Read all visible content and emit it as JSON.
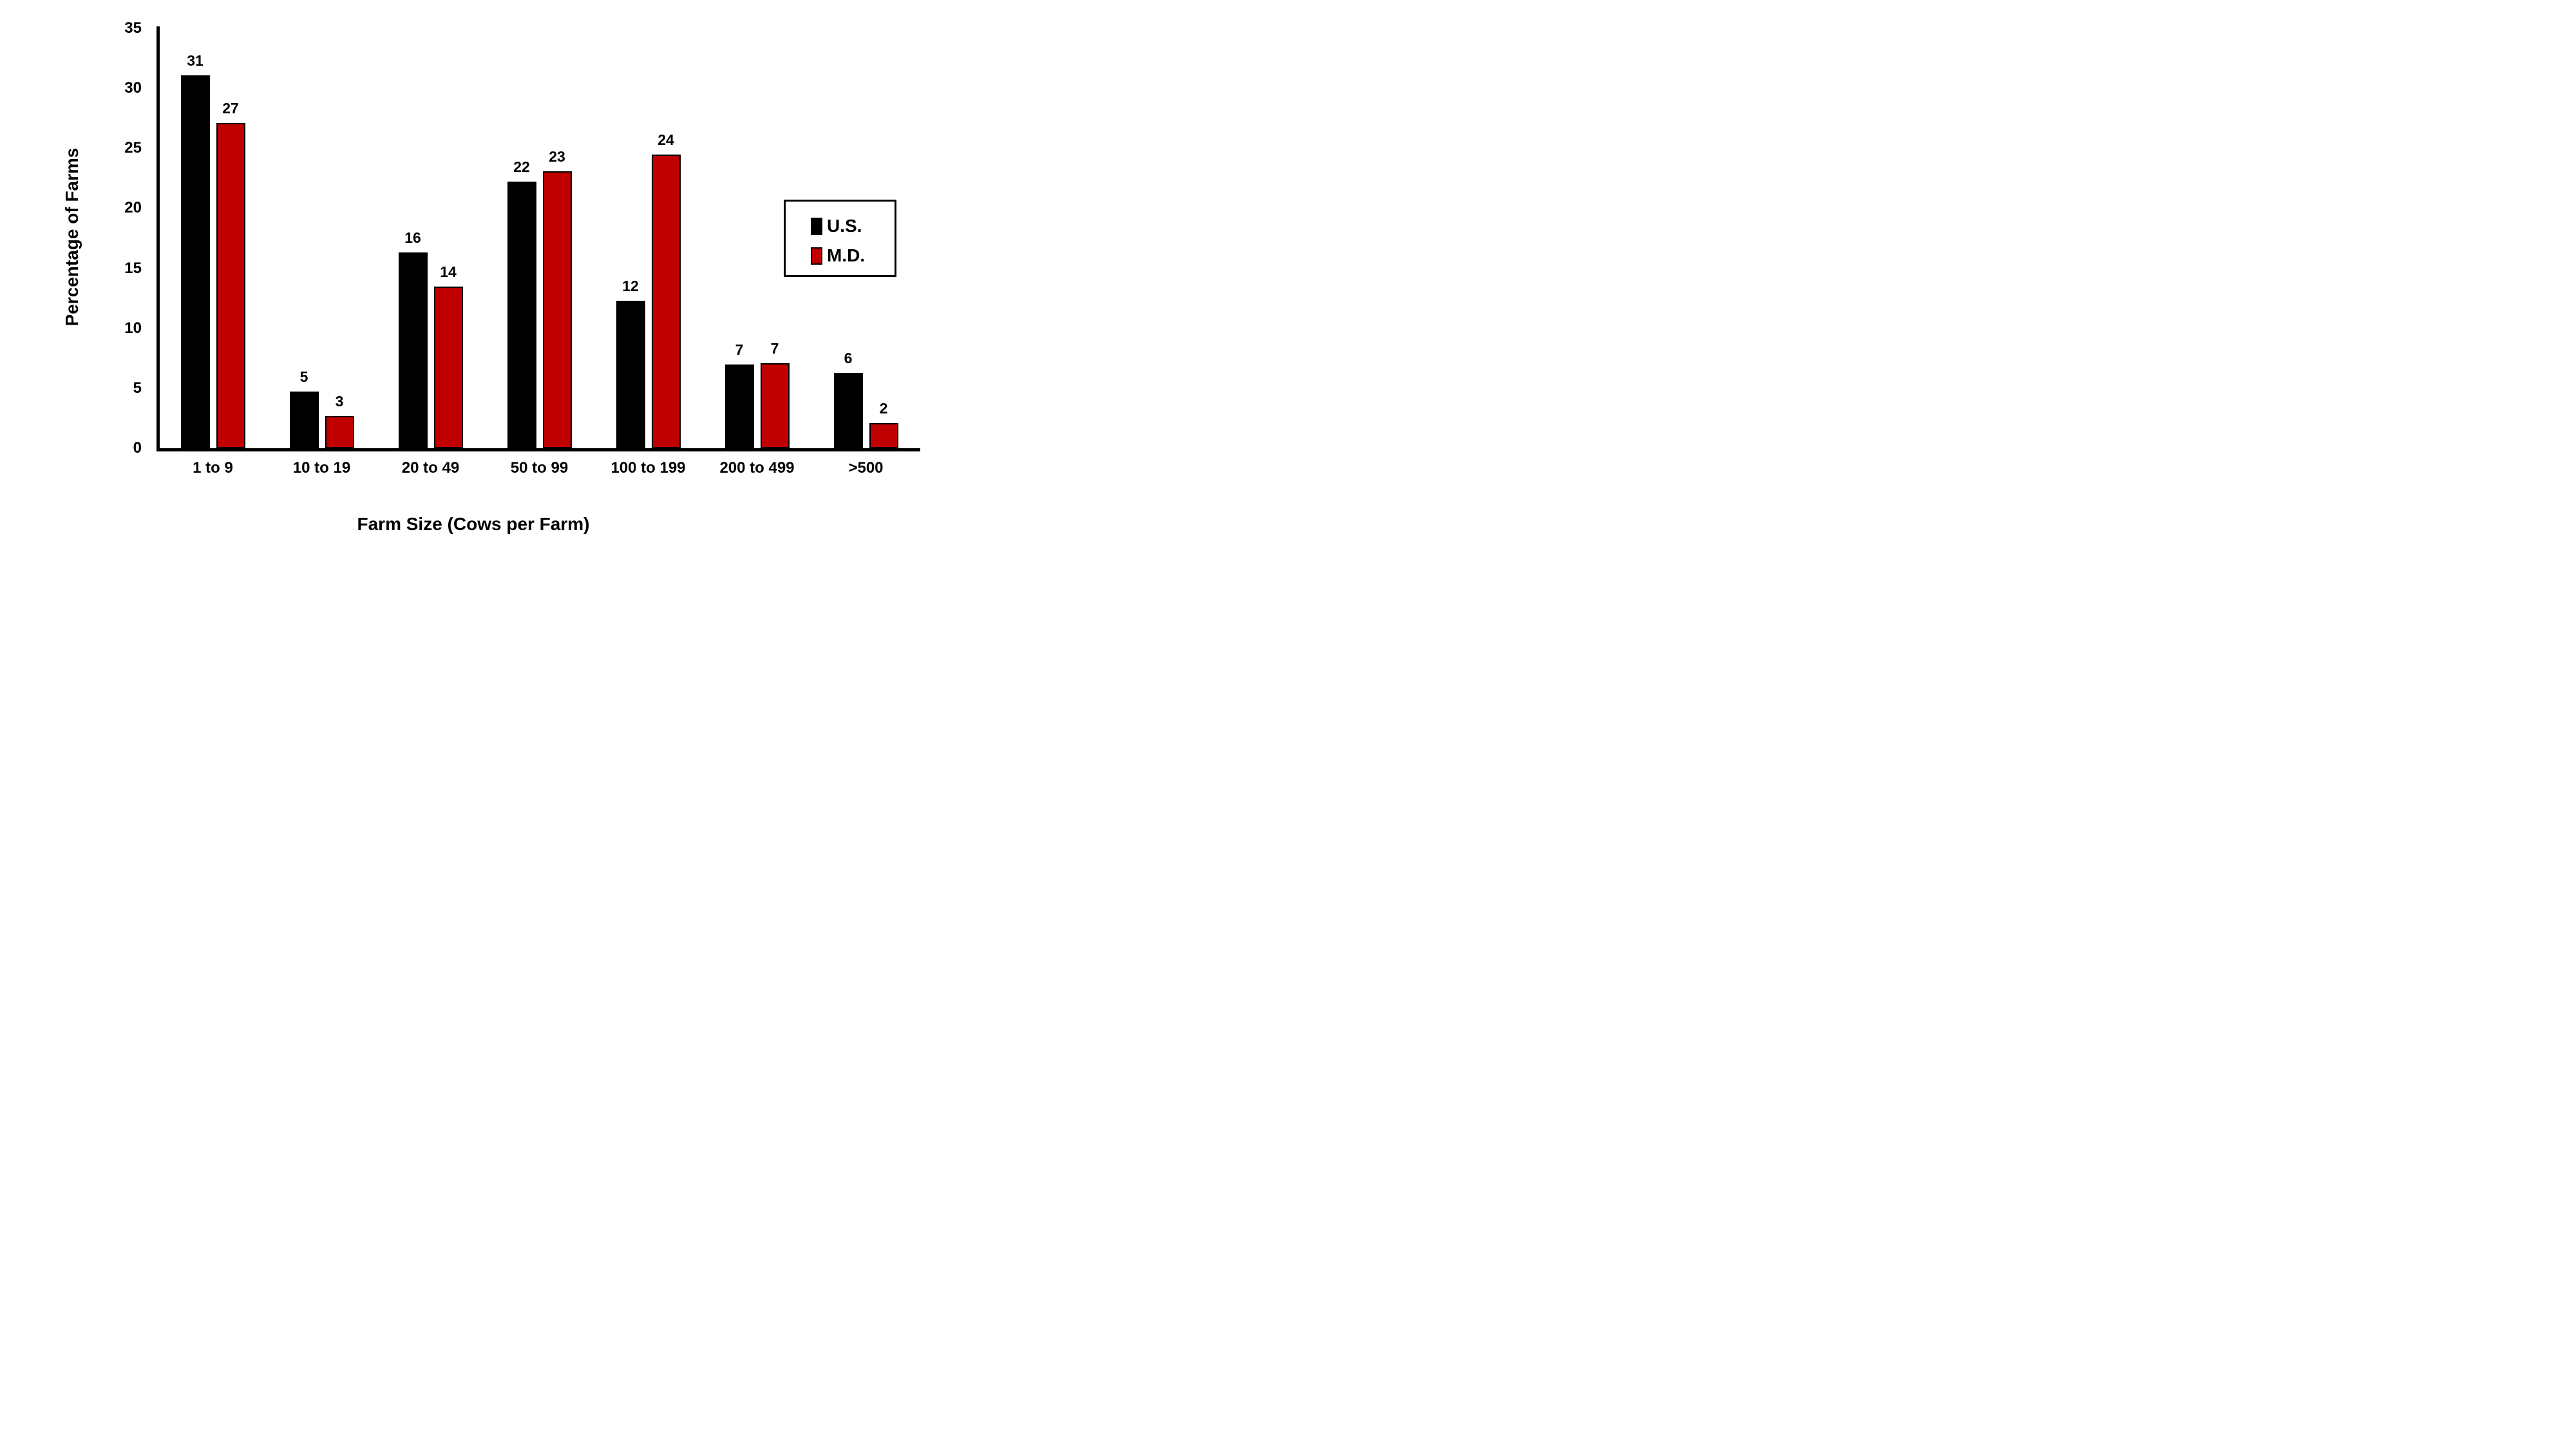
{
  "chart_data": {
    "type": "bar",
    "title": "",
    "xlabel": "Farm Size (Cows per Farm)",
    "ylabel": "Percentage of Farms",
    "categories": [
      "1 to 9",
      "10 to 19",
      "20 to 49",
      "50 to 99",
      "100 to 199",
      "200 to 499",
      ">500"
    ],
    "series": [
      {
        "name": "U.S.",
        "color": "#000000",
        "values": [
          31,
          5,
          16,
          22,
          12,
          7,
          6
        ],
        "bar_heights": [
          31.1,
          4.7,
          16.3,
          22.2,
          12.3,
          7.0,
          6.3
        ]
      },
      {
        "name": "M.D.",
        "color": "#C00000",
        "values": [
          27,
          3,
          14,
          23,
          24,
          7,
          2
        ],
        "bar_heights": [
          27.1,
          2.7,
          13.5,
          23.1,
          24.5,
          7.1,
          2.1
        ]
      }
    ],
    "ylim": [
      0,
      35
    ],
    "yticks": [
      0,
      5,
      10,
      15,
      20,
      25,
      30,
      35
    ],
    "grid": "off",
    "legend_position": "inside-right",
    "axis_color": "#000000",
    "background_color": "#FFFFFF"
  },
  "legend": {
    "items": [
      {
        "label": "U.S.",
        "color": "#000000"
      },
      {
        "label": "M.D.",
        "color": "#C00000"
      }
    ]
  }
}
